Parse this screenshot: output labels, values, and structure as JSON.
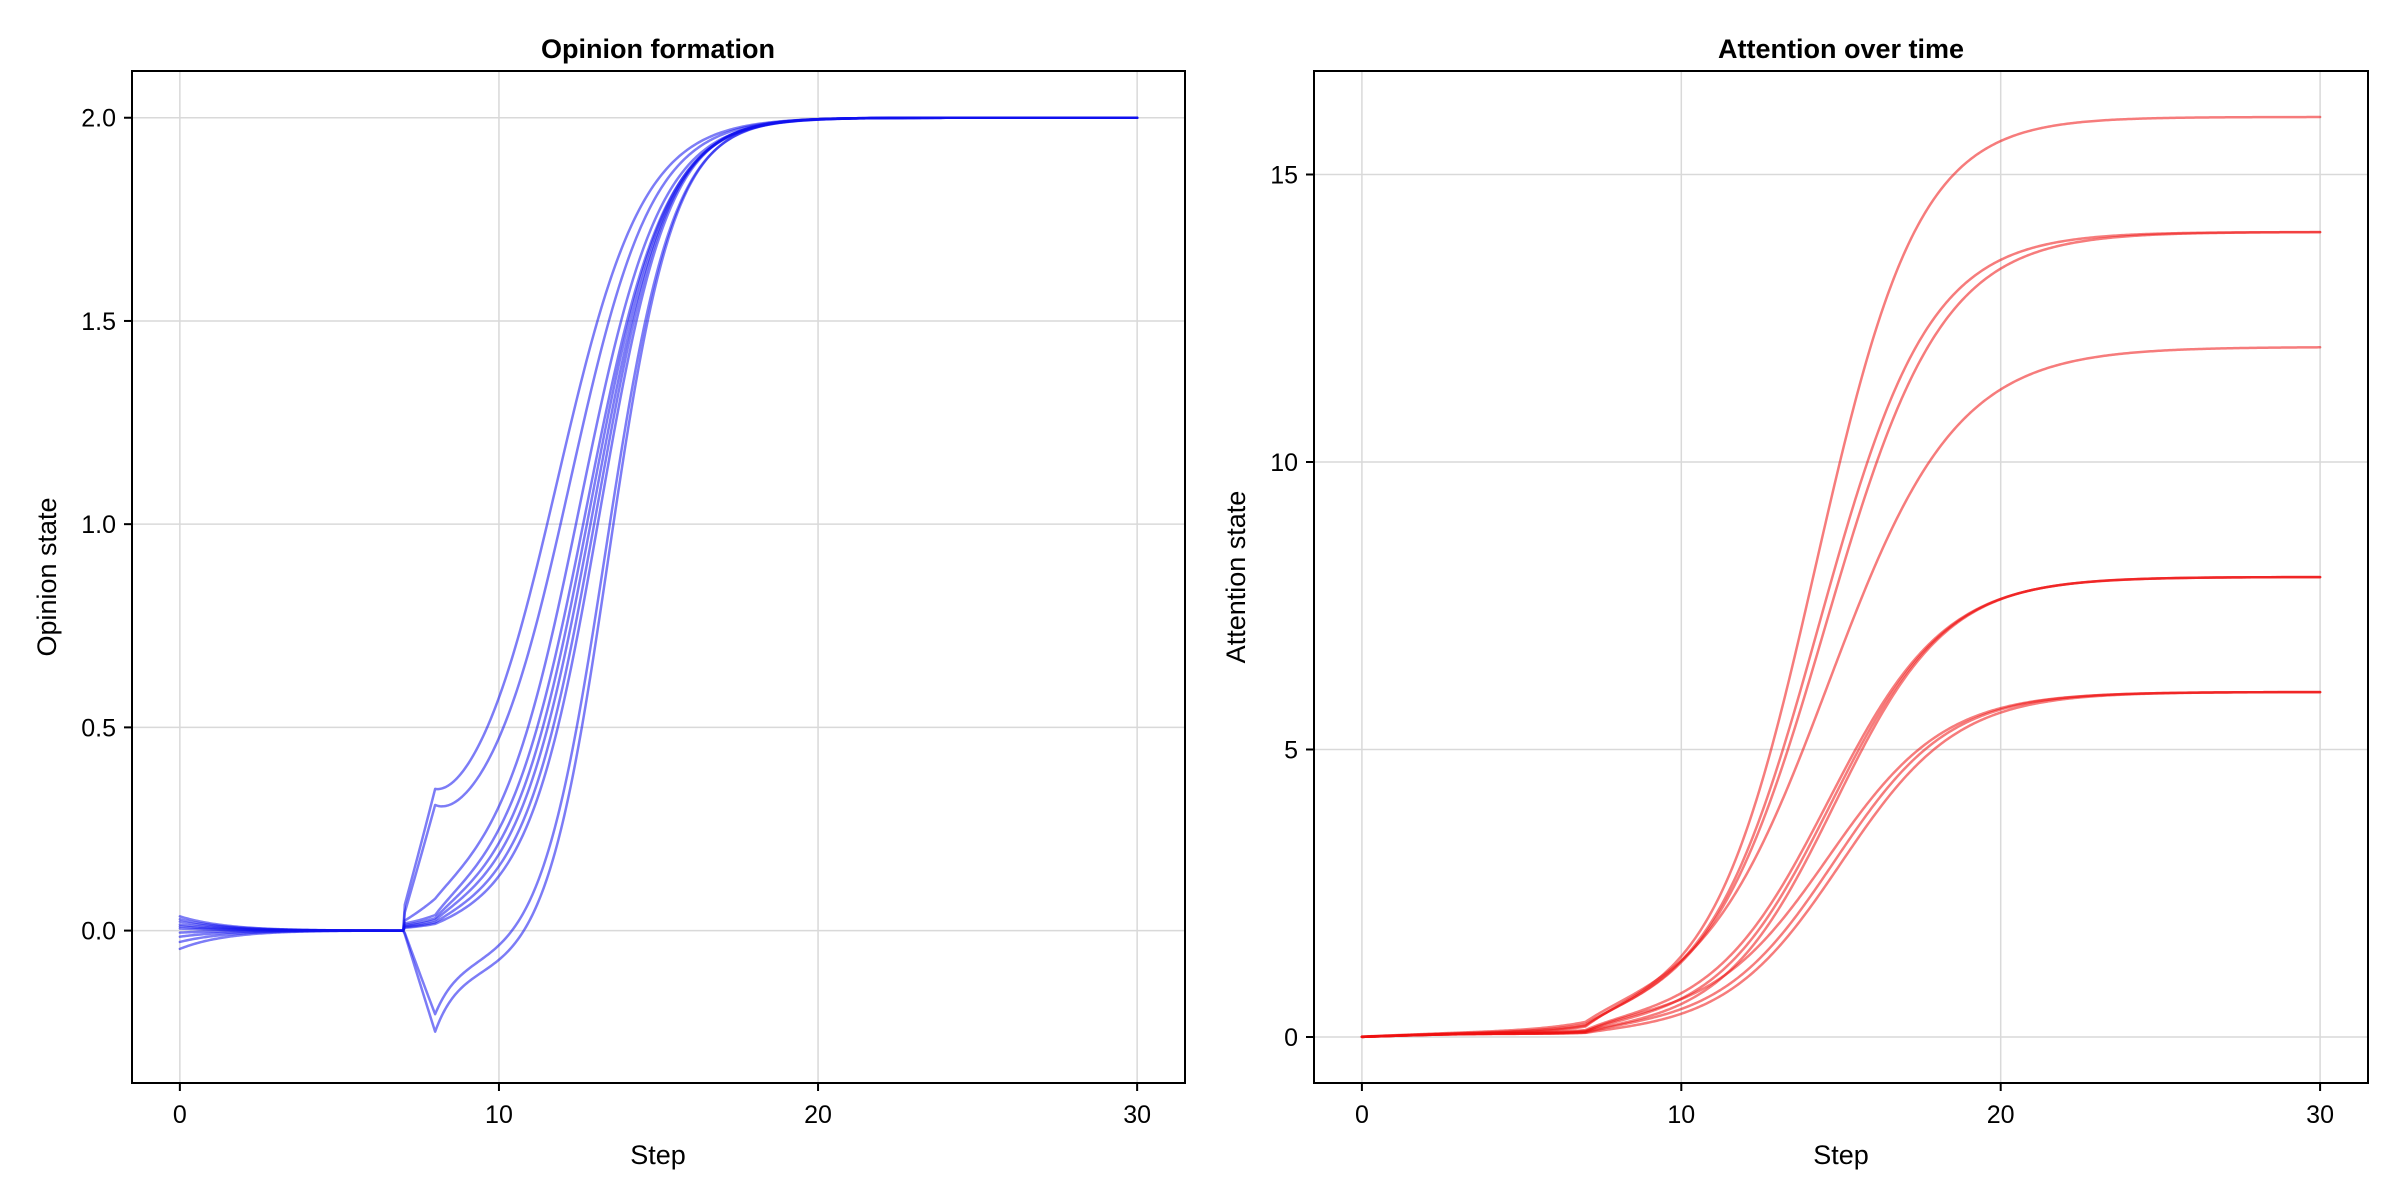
{
  "chart_data": [
    {
      "type": "line",
      "title": "Opinion formation",
      "xlabel": "Step",
      "ylabel": "Opinion state",
      "xlim": [
        -1.5,
        31.5
      ],
      "ylim": [
        -0.375,
        2.115
      ],
      "xticks": [
        0,
        10,
        20,
        30
      ],
      "yticks": [
        0.0,
        0.5,
        1.0,
        1.5,
        2.0
      ],
      "ytick_labels": [
        "0.0",
        "0.5",
        "1.0",
        "1.5",
        "2.0"
      ],
      "xtick_labels": [
        "0",
        "10",
        "20",
        "30"
      ],
      "grid": true,
      "legend": "none",
      "color": "#1010ee",
      "line_opacity": 0.55,
      "curve_model": {
        "phase1_end": 7,
        "spike_step": 8,
        "final_value": 2.0
      },
      "series": [
        {
          "initial": 0.035,
          "spike": 0.26,
          "bump": 0.19,
          "midpoint": 11.9,
          "steepness": 0.75
        },
        {
          "initial": 0.028,
          "spike": 0.25,
          "bump": 0.18,
          "midpoint": 12.3,
          "steepness": 0.78
        },
        {
          "initial": 0.022,
          "spike": 0.03,
          "bump": 0.06,
          "midpoint": 12.6,
          "steepness": 0.8
        },
        {
          "initial": 0.015,
          "spike": 0.0,
          "bump": 0.04,
          "midpoint": 12.8,
          "steepness": 0.82
        },
        {
          "initial": 0.01,
          "spike": 0.0,
          "bump": 0.03,
          "midpoint": 12.9,
          "steepness": 0.85
        },
        {
          "initial": 0.005,
          "spike": 0.0,
          "bump": 0.02,
          "midpoint": 13.0,
          "steepness": 0.87
        },
        {
          "initial": -0.005,
          "spike": 0.0,
          "bump": 0.01,
          "midpoint": 13.1,
          "steepness": 0.9
        },
        {
          "initial": -0.015,
          "spike": 0.0,
          "bump": 0.0,
          "midpoint": 13.2,
          "steepness": 0.92
        },
        {
          "initial": -0.028,
          "spike": -0.22,
          "bump": -0.08,
          "midpoint": 13.3,
          "steepness": 0.95
        },
        {
          "initial": -0.045,
          "spike": -0.26,
          "bump": -0.1,
          "midpoint": 13.4,
          "steepness": 0.98
        }
      ]
    },
    {
      "type": "line",
      "title": "Attention over time",
      "xlabel": "Step",
      "ylabel": "Attention state",
      "xlim": [
        -1.5,
        31.5
      ],
      "ylim": [
        -0.8,
        16.8
      ],
      "xticks": [
        0,
        10,
        20,
        30
      ],
      "yticks": [
        0,
        5,
        10,
        15
      ],
      "ytick_labels": [
        "0",
        "5",
        "10",
        "15"
      ],
      "xtick_labels": [
        "0",
        "10",
        "20",
        "30"
      ],
      "grid": true,
      "legend": "none",
      "color": "#ee1111",
      "line_opacity": 0.55,
      "curve_model": {
        "phase1_end": 7,
        "final_step": 30
      },
      "series": [
        {
          "final": 16,
          "midpoint": 14.2,
          "steepness": 0.62,
          "early": 0.35
        },
        {
          "final": 14,
          "midpoint": 14.3,
          "steepness": 0.58,
          "early": 0.3
        },
        {
          "final": 14,
          "midpoint": 14.5,
          "steepness": 0.55,
          "early": 0.25
        },
        {
          "final": 12,
          "midpoint": 14.6,
          "steepness": 0.5,
          "early": 0.28
        },
        {
          "final": 8,
          "midpoint": 14.6,
          "steepness": 0.55,
          "early": 0.2
        },
        {
          "final": 8,
          "midpoint": 14.7,
          "steepness": 0.56,
          "early": 0.15
        },
        {
          "final": 8,
          "midpoint": 14.8,
          "steepness": 0.57,
          "early": 0.1
        },
        {
          "final": 6,
          "midpoint": 14.6,
          "steepness": 0.55,
          "early": 0.25
        },
        {
          "final": 6,
          "midpoint": 14.8,
          "steepness": 0.56,
          "early": 0.12
        },
        {
          "final": 6,
          "midpoint": 15.0,
          "steepness": 0.55,
          "early": 0.05
        }
      ]
    }
  ]
}
